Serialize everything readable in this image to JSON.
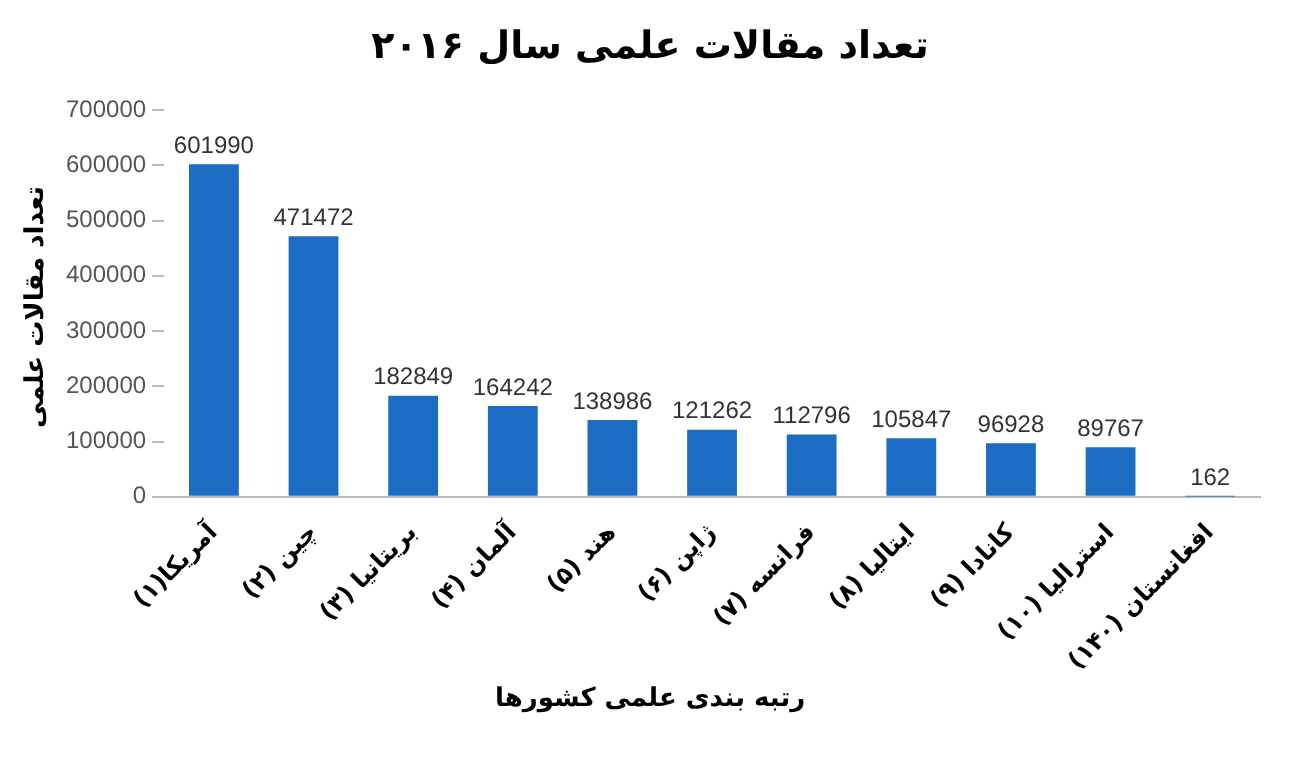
{
  "chart_data": {
    "type": "bar",
    "title": "تعداد مقالات علمی سال ۲۰۱۶",
    "xlabel": "رتبه بندی علمی کشورها",
    "ylabel": "تعداد مقالات علمی",
    "categories": [
      "آمریکا(۱)",
      "چین (۲)",
      "بریتانیا (۳)",
      "آلمان (۴)",
      "هند (۵)",
      "ژاپن (۶)",
      "فرانسه (۷)",
      "ایتالیا (۸)",
      "کانادا (۹)",
      "استرالیا (۱۰)",
      "افغانستان (۱۴۰)"
    ],
    "values": [
      601990,
      471472,
      182849,
      164242,
      138986,
      121262,
      112796,
      105847,
      96928,
      89767,
      162
    ],
    "color": "#1c6cc4",
    "ylim": [
      0,
      700000
    ],
    "yticks": [
      0,
      100000,
      200000,
      300000,
      400000,
      500000,
      600000,
      700000
    ],
    "grid": false,
    "data_labels": true,
    "legend": false
  }
}
